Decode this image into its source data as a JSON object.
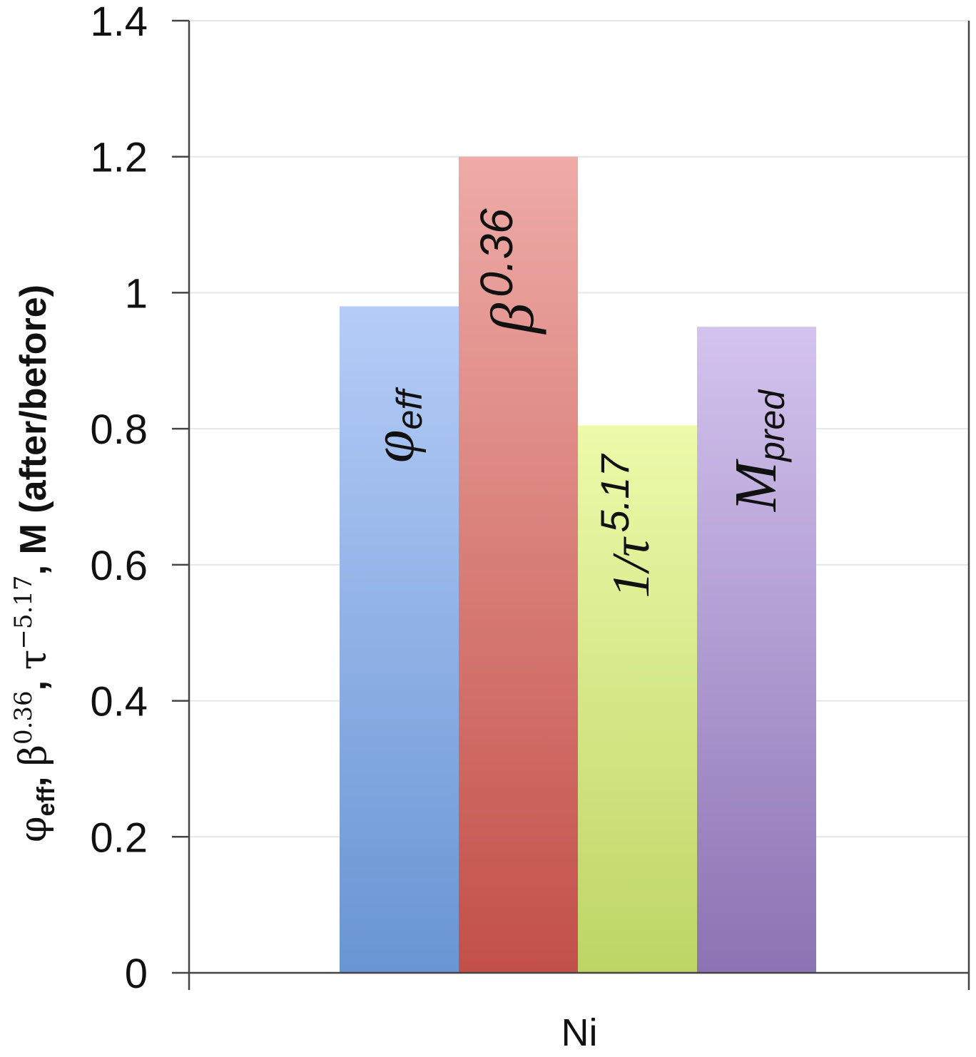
{
  "chart_data": {
    "type": "bar",
    "categories": [
      "Ni"
    ],
    "series": [
      {
        "name": "φeff",
        "label_main": "φ",
        "label_sub": "eff",
        "label_sup": "",
        "values": [
          0.98
        ]
      },
      {
        "name": "β0.36",
        "label_main": "β",
        "label_sub": "",
        "label_sup": "0.36",
        "values": [
          1.2
        ]
      },
      {
        "name": "1/τ 5.17",
        "label_main": "1/τ",
        "label_sub": "",
        "label_sup": "5.17",
        "values": [
          0.805
        ]
      },
      {
        "name": "Mpred",
        "label_main": "M",
        "label_sub": "pred",
        "label_sup": "",
        "values": [
          0.95
        ]
      }
    ],
    "ylim": [
      0,
      1.4
    ],
    "yticks": [
      "0",
      "0.2",
      "0.4",
      "0.6",
      "0.8",
      "1",
      "1.2",
      "1.4"
    ],
    "ylabel": {
      "phi": "φ",
      "phi_sub": "eff",
      "beta": "β",
      "beta_sup": "0.36",
      "tau": "τ",
      "tau_sup": "−5.17",
      "rest": "M (after/before)"
    },
    "grid": true,
    "colors": {
      "phi": [
        "#b5ccf7",
        "#6895d3"
      ],
      "beta": [
        "#eeaba7",
        "#c25048"
      ],
      "tau": [
        "#ecfaaa",
        "#bdd565"
      ],
      "mpred": [
        "#d3c3ee",
        "#8c73b3"
      ]
    }
  }
}
